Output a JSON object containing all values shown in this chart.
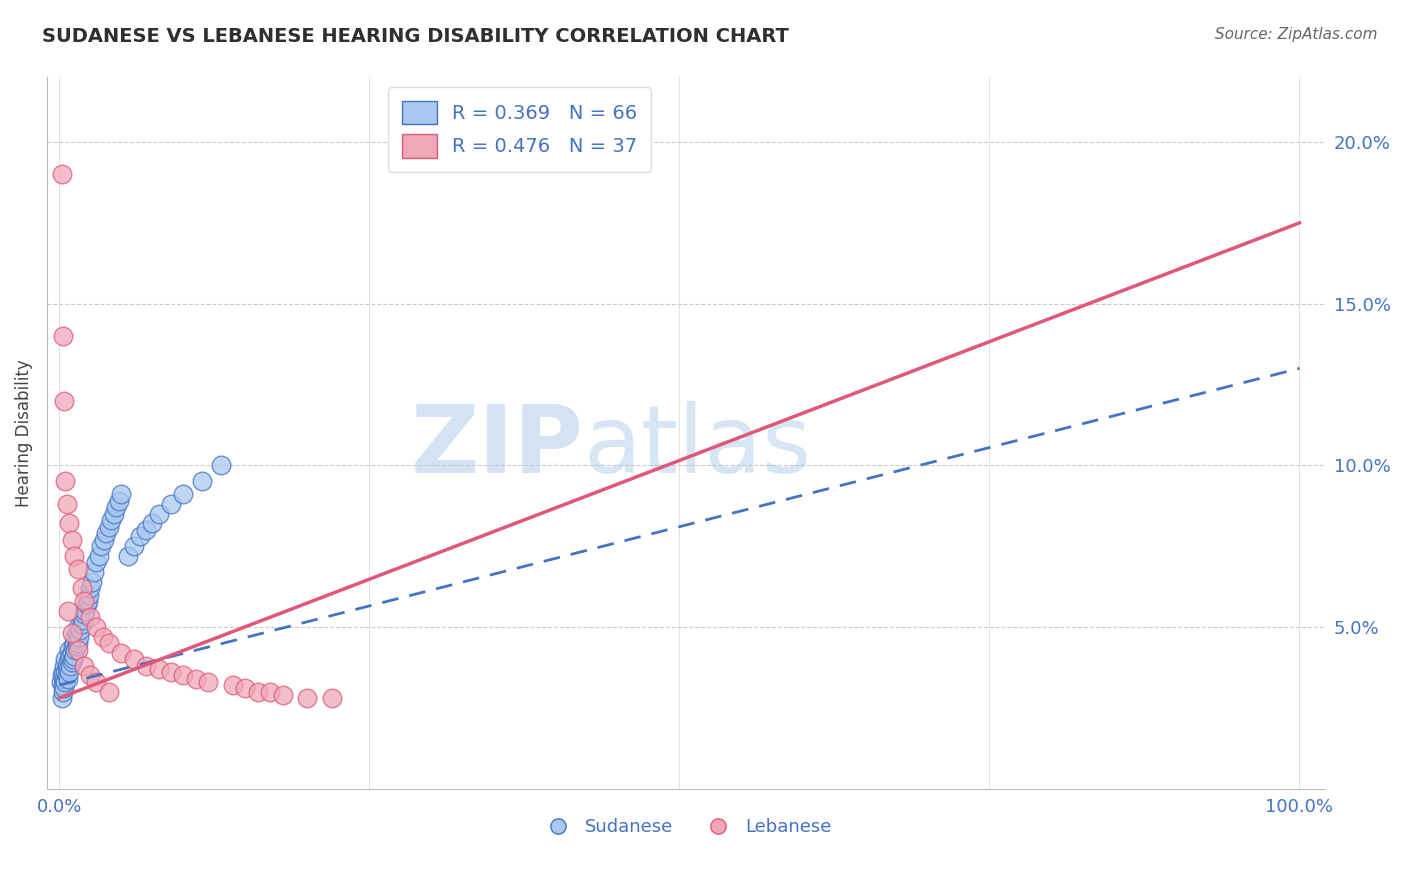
{
  "title": "SUDANESE VS LEBANESE HEARING DISABILITY CORRELATION CHART",
  "source": "Source: ZipAtlas.com",
  "ylabel": "Hearing Disability",
  "watermark_zip": "ZIP",
  "watermark_atlas": "atlas",
  "blue_color": "#A8C8F0",
  "pink_color": "#F0A8B8",
  "blue_line_color": "#4472C4",
  "pink_line_color": "#E05878",
  "blue_dash_color": "#9BBCE8",
  "title_color": "#2F2F2F",
  "axis_label_color": "#4472C4",
  "source_color": "#666666",
  "background_color": "#FFFFFF",
  "grid_color": "#CCCCCC",
  "ylim": [
    0.0,
    0.22
  ],
  "xlim": [
    -0.01,
    1.02
  ],
  "yticks": [
    0.05,
    0.1,
    0.15,
    0.2
  ],
  "ytick_labels": [
    "5.0%",
    "10.0%",
    "15.0%",
    "20.0%"
  ],
  "xticks": [
    0.0,
    0.25,
    0.5,
    0.75,
    1.0
  ],
  "xtick_labels": [
    "0.0%",
    "",
    "",
    "",
    "100.0%"
  ],
  "R_sudanese": 0.369,
  "N_sudanese": 66,
  "R_lebanese": 0.476,
  "N_lebanese": 37,
  "blue_trend": [
    0.032,
    0.13
  ],
  "pink_trend": [
    0.028,
    0.175
  ],
  "sudanese_x": [
    0.001,
    0.002,
    0.002,
    0.003,
    0.003,
    0.003,
    0.004,
    0.004,
    0.004,
    0.005,
    0.005,
    0.005,
    0.006,
    0.006,
    0.007,
    0.007,
    0.008,
    0.008,
    0.008,
    0.009,
    0.009,
    0.01,
    0.01,
    0.011,
    0.011,
    0.012,
    0.012,
    0.013,
    0.013,
    0.014,
    0.014,
    0.015,
    0.015,
    0.016,
    0.017,
    0.018,
    0.019,
    0.02,
    0.021,
    0.022,
    0.023,
    0.024,
    0.025,
    0.026,
    0.028,
    0.03,
    0.032,
    0.034,
    0.036,
    0.038,
    0.04,
    0.042,
    0.044,
    0.046,
    0.048,
    0.05,
    0.055,
    0.06,
    0.065,
    0.07,
    0.075,
    0.08,
    0.09,
    0.1,
    0.115,
    0.13
  ],
  "sudanese_y": [
    0.033,
    0.028,
    0.035,
    0.03,
    0.032,
    0.036,
    0.031,
    0.034,
    0.038,
    0.033,
    0.036,
    0.04,
    0.035,
    0.038,
    0.034,
    0.037,
    0.036,
    0.04,
    0.043,
    0.038,
    0.041,
    0.039,
    0.042,
    0.04,
    0.044,
    0.041,
    0.045,
    0.043,
    0.047,
    0.044,
    0.048,
    0.045,
    0.05,
    0.047,
    0.049,
    0.051,
    0.052,
    0.054,
    0.055,
    0.057,
    0.058,
    0.06,
    0.062,
    0.064,
    0.067,
    0.07,
    0.072,
    0.075,
    0.077,
    0.079,
    0.081,
    0.083,
    0.085,
    0.087,
    0.089,
    0.091,
    0.072,
    0.075,
    0.078,
    0.08,
    0.082,
    0.085,
    0.088,
    0.091,
    0.095,
    0.1
  ],
  "lebanese_x": [
    0.002,
    0.003,
    0.004,
    0.005,
    0.006,
    0.008,
    0.01,
    0.012,
    0.015,
    0.018,
    0.02,
    0.025,
    0.03,
    0.035,
    0.04,
    0.05,
    0.06,
    0.07,
    0.08,
    0.09,
    0.1,
    0.11,
    0.12,
    0.14,
    0.15,
    0.16,
    0.17,
    0.18,
    0.2,
    0.22,
    0.007,
    0.01,
    0.015,
    0.02,
    0.025,
    0.03,
    0.04
  ],
  "lebanese_y": [
    0.19,
    0.14,
    0.12,
    0.095,
    0.088,
    0.082,
    0.077,
    0.072,
    0.068,
    0.062,
    0.058,
    0.053,
    0.05,
    0.047,
    0.045,
    0.042,
    0.04,
    0.038,
    0.037,
    0.036,
    0.035,
    0.034,
    0.033,
    0.032,
    0.031,
    0.03,
    0.03,
    0.029,
    0.028,
    0.028,
    0.055,
    0.048,
    0.043,
    0.038,
    0.035,
    0.033,
    0.03
  ]
}
